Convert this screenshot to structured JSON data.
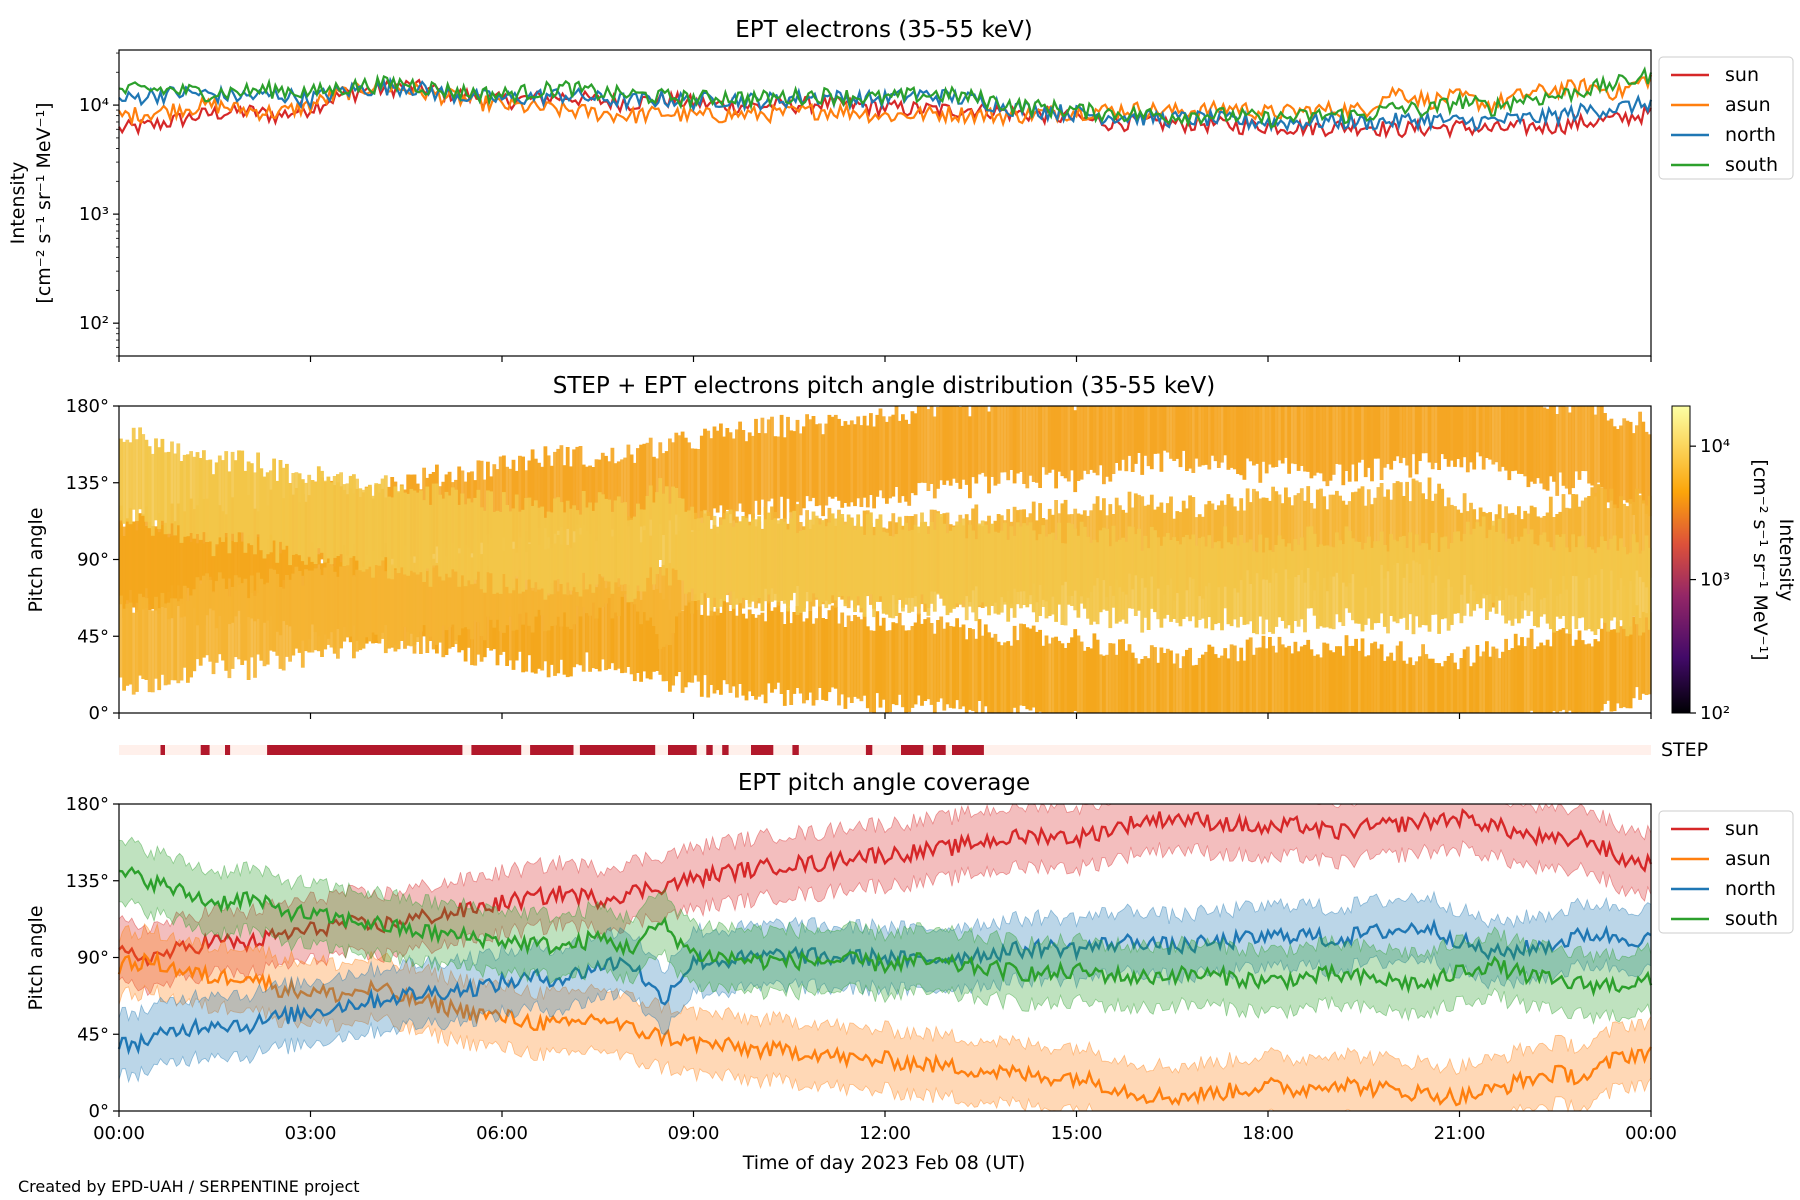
{
  "footer": "Created by EPD-UAH / SERPENTINE project",
  "colors": {
    "sun": "#d62728",
    "asun": "#ff7f0e",
    "north": "#1f77b4",
    "south": "#2ca02c",
    "step_bar": "#b2182b",
    "step_bg": "#fff0eb"
  },
  "chart_data": [
    {
      "type": "line",
      "title": "EPT electrons (35-55 keV)",
      "ylabel": [
        "Intensity",
        "[cm⁻² s⁻¹ sr⁻¹ MeV⁻¹]"
      ],
      "yscale": "log",
      "ylim": [
        50,
        32000
      ],
      "yticks": [
        {
          "v": 100,
          "label": "10²"
        },
        {
          "v": 1000,
          "label": "10³"
        },
        {
          "v": 10000,
          "label": "10⁴"
        }
      ],
      "xlim": [
        "00:00",
        "24:00"
      ],
      "legend": "outside-right-top",
      "series": [
        {
          "name": "sun",
          "color": "#d62728",
          "x": [
            0,
            0.5,
            1,
            1.5,
            2,
            2.5,
            3,
            3.5,
            4,
            4.5,
            5,
            5.5,
            6,
            6.5,
            7,
            7.5,
            8,
            8.5,
            9,
            9.5,
            10,
            10.5,
            11,
            11.5,
            12,
            12.5,
            13,
            13.5,
            14,
            14.5,
            15,
            15.5,
            16,
            16.5,
            17,
            17.5,
            18,
            18.5,
            19,
            19.5,
            20,
            20.5,
            21,
            21.5,
            22,
            22.5,
            23,
            23.5,
            24
          ],
          "values": [
            6000,
            6500,
            7500,
            8500,
            8800,
            8000,
            9500,
            12500,
            14000,
            15000,
            13500,
            12000,
            11000,
            11500,
            12000,
            11000,
            10500,
            11500,
            10500,
            10000,
            9800,
            10000,
            10500,
            10000,
            9500,
            9200,
            9000,
            9300,
            8500,
            8200,
            7500,
            7000,
            7000,
            6800,
            6800,
            6500,
            6500,
            6300,
            6300,
            6500,
            6000,
            6200,
            6300,
            6000,
            6300,
            6500,
            7000,
            7500,
            8500
          ]
        },
        {
          "name": "asun",
          "color": "#ff7f0e",
          "x": [
            0,
            0.5,
            1,
            1.5,
            2,
            2.5,
            3,
            3.5,
            4,
            4.5,
            5,
            5.5,
            6,
            6.5,
            7,
            7.5,
            8,
            8.5,
            9,
            9.5,
            10,
            10.5,
            11,
            11.5,
            12,
            12.5,
            13,
            13.5,
            14,
            14.5,
            15,
            15.5,
            16,
            16.5,
            17,
            17.5,
            18,
            18.5,
            19,
            19.5,
            20,
            20.5,
            21,
            21.5,
            22,
            22.5,
            23,
            23.5,
            24
          ],
          "values": [
            8000,
            8500,
            9500,
            10000,
            9000,
            8500,
            10000,
            13000,
            15000,
            14000,
            12500,
            11000,
            10000,
            9500,
            9000,
            8500,
            8000,
            8500,
            8000,
            8200,
            8300,
            8500,
            9000,
            8800,
            8000,
            8300,
            8500,
            8200,
            8000,
            8500,
            8800,
            9000,
            9200,
            8800,
            9000,
            9500,
            8500,
            8800,
            9200,
            9000,
            13500,
            11000,
            12000,
            10000,
            12500,
            14000,
            15000,
            13000,
            18000
          ]
        },
        {
          "name": "north",
          "color": "#1f77b4",
          "x": [
            0,
            0.5,
            1,
            1.5,
            2,
            2.5,
            3,
            3.5,
            4,
            4.5,
            5,
            5.5,
            6,
            6.5,
            7,
            7.5,
            8,
            8.5,
            9,
            9.5,
            10,
            10.5,
            11,
            11.5,
            12,
            12.5,
            13,
            13.5,
            14,
            14.5,
            15,
            15.5,
            16,
            16.5,
            17,
            17.5,
            18,
            18.5,
            19,
            19.5,
            20,
            20.5,
            21,
            21.5,
            22,
            22.5,
            23,
            23.5,
            24
          ],
          "values": [
            11000,
            12500,
            13000,
            12500,
            12000,
            12500,
            11500,
            13500,
            14500,
            15000,
            13000,
            12000,
            11500,
            12000,
            12500,
            11500,
            11000,
            11500,
            11000,
            11500,
            11000,
            11500,
            12000,
            11500,
            11500,
            12500,
            12000,
            11000,
            9500,
            9000,
            8500,
            8000,
            7800,
            7500,
            7600,
            7200,
            7000,
            7000,
            7200,
            7000,
            7200,
            7500,
            7000,
            7200,
            7500,
            8000,
            9000,
            9500,
            10500
          ]
        },
        {
          "name": "south",
          "color": "#2ca02c",
          "x": [
            0,
            0.5,
            1,
            1.5,
            2,
            2.5,
            3,
            3.5,
            4,
            4.5,
            5,
            5.5,
            6,
            6.5,
            7,
            7.5,
            8,
            8.5,
            9,
            9.5,
            10,
            10.5,
            11,
            11.5,
            12,
            12.5,
            13,
            13.5,
            14,
            14.5,
            15,
            15.5,
            16,
            16.5,
            17,
            17.5,
            18,
            18.5,
            19,
            19.5,
            20,
            20.5,
            21,
            21.5,
            22,
            22.5,
            23,
            23.5,
            24
          ],
          "values": [
            13500,
            14000,
            13500,
            13000,
            13500,
            14000,
            13000,
            14500,
            15500,
            16000,
            14000,
            13000,
            12500,
            13500,
            14500,
            13000,
            12500,
            12000,
            11500,
            12000,
            11500,
            12000,
            12500,
            12000,
            11500,
            12500,
            12500,
            11500,
            10000,
            9500,
            9000,
            8500,
            8300,
            8000,
            8200,
            8000,
            7500,
            7800,
            8200,
            8000,
            9500,
            9000,
            11000,
            9500,
            11500,
            12000,
            14000,
            16000,
            19000
          ]
        }
      ]
    },
    {
      "type": "heatmap",
      "title": "STEP + EPT electrons pitch angle distribution (35-55 keV)",
      "ylabel": "Pitch angle",
      "ylim": [
        0,
        180
      ],
      "yticks": [
        "0°",
        "45°",
        "90°",
        "135°",
        "180°"
      ],
      "xlim": [
        "00:00",
        "24:00"
      ],
      "colorbar": {
        "label": [
          "Intensity",
          "[cm⁻² s⁻¹ sr⁻¹ MeV⁻¹]"
        ],
        "scale": "log",
        "range": [
          100,
          20000
        ],
        "ticks": [
          {
            "v": 100,
            "label": "10²"
          },
          {
            "v": 1000,
            "label": "10³"
          },
          {
            "v": 10000,
            "label": "10⁴"
          }
        ],
        "colormap": "inferno"
      },
      "bands": [
        {
          "name": "sun",
          "color": "#f5a623",
          "intensity": 9000
        },
        {
          "name": "asun",
          "color": "#f4a71c",
          "intensity": 9000
        },
        {
          "name": "north",
          "color": "#f5b433",
          "intensity": 10000
        },
        {
          "name": "south",
          "color": "#f3c648",
          "intensity": 11000
        }
      ]
    },
    {
      "type": "timeline",
      "label": "STEP",
      "xlim": [
        "00:00",
        "24:00"
      ],
      "segments": [
        [
          0.65,
          0.72
        ],
        [
          1.28,
          1.42
        ],
        [
          1.66,
          1.74
        ],
        [
          2.32,
          5.38
        ],
        [
          5.52,
          6.3
        ],
        [
          6.44,
          7.12
        ],
        [
          7.22,
          8.4
        ],
        [
          8.6,
          9.05
        ],
        [
          9.2,
          9.3
        ],
        [
          9.45,
          9.55
        ],
        [
          9.9,
          10.25
        ],
        [
          10.55,
          10.65
        ],
        [
          11.7,
          11.8
        ],
        [
          12.25,
          12.6
        ],
        [
          12.75,
          12.95
        ],
        [
          13.05,
          13.55
        ]
      ]
    },
    {
      "type": "line",
      "title": "EPT pitch angle coverage",
      "ylabel": "Pitch angle",
      "xlabel": "Time of day 2023 Feb 08 (UT)",
      "ylim": [
        0,
        180
      ],
      "yticks": [
        "0°",
        "45°",
        "90°",
        "135°",
        "180°"
      ],
      "xticks": [
        "00:00",
        "03:00",
        "06:00",
        "09:00",
        "12:00",
        "15:00",
        "18:00",
        "21:00",
        "00:00"
      ],
      "legend": "outside-right-top",
      "band_halfwidth_deg": 18,
      "series": [
        {
          "name": "sun",
          "color": "#d62728",
          "x": [
            0,
            0.5,
            1,
            1.5,
            2,
            2.5,
            3,
            3.5,
            4,
            4.5,
            5,
            5.5,
            6,
            6.5,
            7,
            7.5,
            8,
            8.5,
            9,
            9.5,
            10,
            10.5,
            11,
            11.5,
            12,
            12.5,
            13,
            13.5,
            14,
            14.5,
            15,
            15.5,
            16,
            16.5,
            17,
            17.5,
            18,
            18.5,
            19,
            19.5,
            20,
            20.5,
            21,
            21.5,
            22,
            22.5,
            23,
            23.5,
            24
          ],
          "values": [
            92,
            90,
            95,
            100,
            98,
            103,
            106,
            110,
            108,
            112,
            115,
            118,
            122,
            125,
            128,
            124,
            128,
            132,
            136,
            140,
            142,
            145,
            145,
            150,
            150,
            152,
            154,
            158,
            160,
            162,
            160,
            165,
            170,
            172,
            170,
            168,
            165,
            168,
            163,
            166,
            168,
            170,
            172,
            168,
            162,
            158,
            160,
            148,
            145
          ]
        },
        {
          "name": "asun",
          "color": "#ff7f0e",
          "x": [
            0,
            0.5,
            1,
            1.5,
            2,
            2.5,
            3,
            3.5,
            4,
            4.5,
            5,
            5.5,
            6,
            6.5,
            7,
            7.5,
            8,
            8.5,
            9,
            9.5,
            10,
            10.5,
            11,
            11.5,
            12,
            12.5,
            13,
            13.5,
            14,
            14.5,
            15,
            15.5,
            16,
            16.5,
            17,
            17.5,
            18,
            18.5,
            19,
            19.5,
            20,
            20.5,
            21,
            21.5,
            22,
            22.5,
            23,
            23.5,
            24
          ],
          "values": [
            85,
            88,
            82,
            78,
            80,
            72,
            70,
            68,
            72,
            66,
            62,
            58,
            55,
            52,
            50,
            55,
            48,
            44,
            40,
            38,
            36,
            35,
            34,
            30,
            30,
            28,
            26,
            24,
            22,
            20,
            20,
            15,
            10,
            8,
            10,
            12,
            15,
            12,
            17,
            14,
            12,
            10,
            8,
            12,
            18,
            22,
            20,
            32,
            35
          ]
        },
        {
          "name": "north",
          "color": "#1f77b4",
          "x": [
            0,
            0.5,
            1,
            1.5,
            2,
            2.5,
            3,
            3.5,
            4,
            4.5,
            5,
            5.5,
            6,
            6.5,
            7,
            7.5,
            8,
            8.5,
            9,
            9.5,
            10,
            10.5,
            11,
            11.5,
            12,
            12.5,
            13,
            13.5,
            14,
            14.5,
            15,
            15.5,
            16,
            16.5,
            17,
            17.5,
            18,
            18.5,
            19,
            19.5,
            20,
            20.5,
            21,
            21.5,
            22,
            22.5,
            23,
            23.5,
            24
          ],
          "values": [
            38,
            42,
            48,
            52,
            50,
            55,
            58,
            62,
            65,
            68,
            70,
            72,
            75,
            78,
            78,
            85,
            88,
            65,
            88,
            88,
            90,
            92,
            90,
            90,
            90,
            88,
            90,
            92,
            94,
            96,
            95,
            98,
            100,
            96,
            98,
            100,
            102,
            104,
            100,
            104,
            106,
            108,
            100,
            92,
            95,
            98,
            104,
            102,
            100
          ]
        },
        {
          "name": "south",
          "color": "#2ca02c",
          "x": [
            0,
            0.5,
            1,
            1.5,
            2,
            2.5,
            3,
            3.5,
            4,
            4.5,
            5,
            5.5,
            6,
            6.5,
            7,
            7.5,
            8,
            8.5,
            9,
            9.5,
            10,
            10.5,
            11,
            11.5,
            12,
            12.5,
            13,
            13.5,
            14,
            14.5,
            15,
            15.5,
            16,
            16.5,
            17,
            17.5,
            18,
            18.5,
            19,
            19.5,
            20,
            20.5,
            21,
            21.5,
            22,
            22.5,
            23,
            23.5,
            24
          ],
          "values": [
            140,
            135,
            128,
            122,
            125,
            118,
            115,
            112,
            110,
            106,
            104,
            102,
            100,
            98,
            96,
            102,
            95,
            110,
            92,
            90,
            88,
            88,
            88,
            88,
            86,
            88,
            86,
            84,
            82,
            80,
            82,
            80,
            78,
            80,
            80,
            78,
            76,
            78,
            80,
            78,
            76,
            74,
            82,
            86,
            80,
            76,
            74,
            74,
            76
          ]
        }
      ]
    }
  ]
}
